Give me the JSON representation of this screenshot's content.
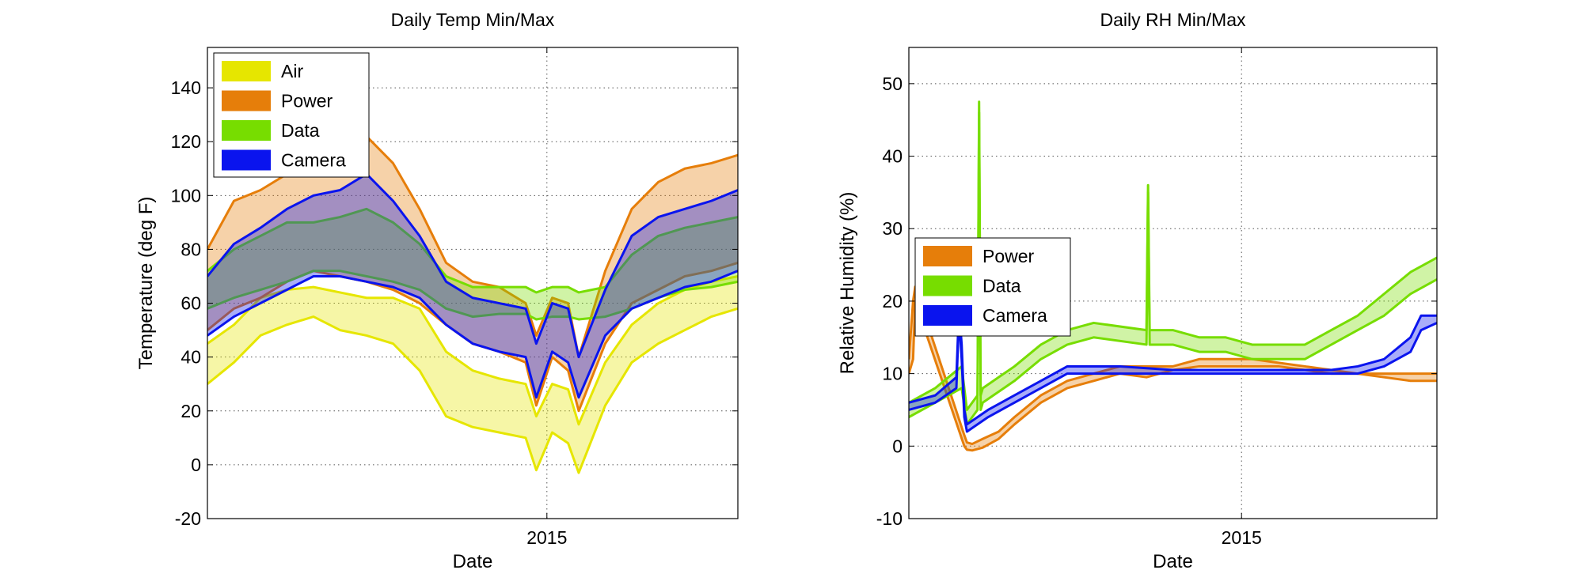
{
  "chart_data": [
    {
      "type": "line",
      "title": "Daily Temp Min/Max",
      "xlabel": "Date",
      "ylabel": "Temperature (deg F)",
      "xlim": [
        0,
        100
      ],
      "ylim": [
        -20,
        155
      ],
      "x_ticks": [
        {
          "x": 64,
          "label": "2015"
        }
      ],
      "y_ticks": [
        -20,
        0,
        20,
        40,
        60,
        80,
        100,
        120,
        140
      ],
      "grid": true,
      "legend_position": "top-left",
      "series": [
        {
          "name": "Air",
          "color": "#e6e600",
          "x": [
            0,
            5,
            10,
            15,
            20,
            25,
            30,
            35,
            40,
            45,
            50,
            55,
            60,
            62,
            65,
            68,
            70,
            75,
            80,
            85,
            90,
            95,
            100
          ],
          "min": [
            30,
            38,
            48,
            52,
            55,
            50,
            48,
            45,
            35,
            18,
            14,
            12,
            10,
            -2,
            12,
            8,
            -3,
            22,
            38,
            45,
            50,
            55,
            58
          ],
          "max": [
            45,
            52,
            62,
            65,
            66,
            64,
            62,
            62,
            58,
            42,
            35,
            32,
            30,
            18,
            30,
            28,
            15,
            38,
            52,
            60,
            65,
            68,
            70
          ]
        },
        {
          "name": "Power",
          "color": "#e67e0a",
          "x": [
            0,
            5,
            10,
            15,
            20,
            25,
            30,
            35,
            40,
            45,
            50,
            55,
            60,
            62,
            65,
            68,
            70,
            75,
            80,
            85,
            90,
            95,
            100
          ],
          "min": [
            50,
            58,
            62,
            68,
            72,
            70,
            68,
            65,
            60,
            52,
            45,
            42,
            38,
            22,
            40,
            35,
            20,
            45,
            60,
            65,
            70,
            72,
            75
          ],
          "max": [
            80,
            98,
            102,
            108,
            115,
            118,
            122,
            112,
            95,
            75,
            68,
            66,
            60,
            48,
            62,
            60,
            40,
            72,
            95,
            105,
            110,
            112,
            115
          ]
        },
        {
          "name": "Data",
          "color": "#77dd00",
          "x": [
            0,
            5,
            10,
            15,
            20,
            25,
            30,
            35,
            40,
            45,
            50,
            55,
            60,
            62,
            65,
            68,
            70,
            75,
            80,
            85,
            90,
            95,
            100
          ],
          "min": [
            58,
            62,
            65,
            68,
            72,
            72,
            70,
            68,
            65,
            58,
            55,
            56,
            56,
            54,
            55,
            55,
            54,
            55,
            58,
            62,
            65,
            66,
            68
          ],
          "max": [
            72,
            80,
            85,
            90,
            90,
            92,
            95,
            90,
            82,
            70,
            66,
            66,
            66,
            64,
            66,
            66,
            64,
            66,
            78,
            85,
            88,
            90,
            92
          ]
        },
        {
          "name": "Camera",
          "color": "#0a14ee",
          "x": [
            0,
            5,
            10,
            15,
            20,
            25,
            30,
            35,
            40,
            45,
            50,
            55,
            60,
            62,
            65,
            68,
            70,
            75,
            80,
            85,
            90,
            95,
            100
          ],
          "min": [
            48,
            55,
            60,
            65,
            70,
            70,
            68,
            66,
            62,
            52,
            45,
            42,
            40,
            25,
            42,
            38,
            25,
            48,
            58,
            62,
            66,
            68,
            72
          ],
          "max": [
            70,
            82,
            88,
            95,
            100,
            102,
            108,
            98,
            85,
            68,
            62,
            60,
            58,
            45,
            60,
            58,
            40,
            65,
            85,
            92,
            95,
            98,
            102
          ]
        }
      ]
    },
    {
      "type": "line",
      "title": "Daily RH Min/Max",
      "xlabel": "Date",
      "ylabel": "Relative Humidity (%)",
      "xlim": [
        0,
        100
      ],
      "ylim": [
        -10,
        55
      ],
      "x_ticks": [
        {
          "x": 63,
          "label": "2015"
        }
      ],
      "y_ticks": [
        -10,
        0,
        10,
        20,
        30,
        40,
        50
      ],
      "grid": true,
      "legend_position": "middle-left",
      "series": [
        {
          "name": "Power",
          "color": "#e67e0a",
          "x": [
            0,
            0.8,
            1.2,
            10.5,
            11,
            12,
            14,
            17,
            20,
            25,
            30,
            35,
            40,
            45,
            50,
            55,
            60,
            65,
            70,
            75,
            80,
            85,
            90,
            95,
            100
          ],
          "min": [
            10,
            12,
            20,
            0,
            -0.5,
            -0.6,
            -0.2,
            1,
            3,
            6,
            8,
            9,
            10,
            9.5,
            10.5,
            11,
            11,
            11,
            11,
            10.5,
            10,
            10,
            9.5,
            9,
            9
          ],
          "max": [
            12,
            20,
            22,
            1.5,
            0.5,
            0.3,
            1,
            2,
            4,
            7,
            9,
            10,
            11,
            11,
            11,
            12,
            12,
            12,
            11.5,
            11,
            10.5,
            10,
            10,
            10,
            10
          ]
        },
        {
          "name": "Data",
          "color": "#77dd00",
          "x": [
            0,
            5,
            10,
            11,
            12,
            13,
            13.3,
            13.6,
            14,
            20,
            25,
            30,
            35,
            45,
            45.3,
            45.6,
            50,
            55,
            60,
            65,
            70,
            75,
            80,
            85,
            90,
            95,
            100
          ],
          "min": [
            4,
            6,
            8,
            3,
            4,
            5,
            46,
            5,
            6,
            9,
            12,
            14,
            15,
            14,
            35,
            14,
            14,
            13,
            13,
            12,
            12,
            12,
            14,
            16,
            18,
            21,
            23
          ],
          "max": [
            6,
            8,
            11,
            5,
            6,
            7,
            47.5,
            7,
            8,
            11,
            14,
            16,
            17,
            16,
            36,
            16,
            16,
            15,
            15,
            14,
            14,
            14,
            16,
            18,
            21,
            24,
            26
          ]
        },
        {
          "name": "Camera",
          "color": "#0a14ee",
          "x": [
            0,
            5,
            9,
            9.5,
            10,
            10.5,
            11,
            12,
            15,
            20,
            25,
            30,
            40,
            50,
            60,
            70,
            80,
            85,
            90,
            95,
            97,
            100
          ],
          "min": [
            5,
            6,
            8,
            18,
            12,
            4,
            2,
            2.5,
            4,
            6,
            8,
            10,
            10,
            10,
            10,
            10,
            10,
            10,
            11,
            13,
            16,
            17
          ],
          "max": [
            6,
            7,
            9.5,
            19,
            14,
            5,
            3,
            3.5,
            5,
            7,
            9,
            11,
            11,
            10.5,
            10.5,
            10.5,
            10.5,
            11,
            12,
            15,
            18,
            18
          ]
        }
      ]
    }
  ]
}
